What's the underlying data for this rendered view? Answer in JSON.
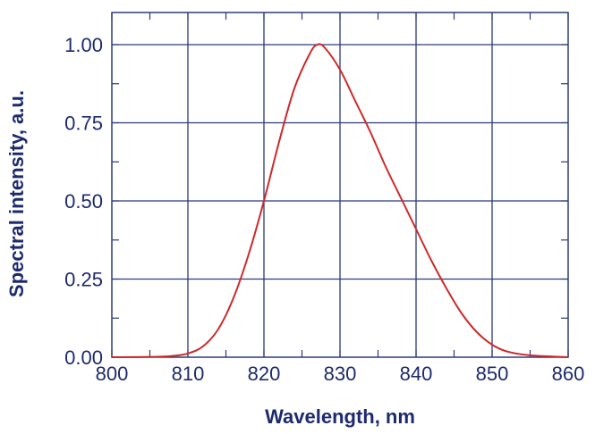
{
  "chart_data": {
    "type": "line",
    "title": "",
    "xlabel": "Wavelength, nm",
    "ylabel": "Spectral intensity, a.u.",
    "xlim": [
      800,
      860
    ],
    "ylim": [
      0,
      1.0
    ],
    "xticks": [
      800,
      810,
      820,
      830,
      840,
      850,
      860
    ],
    "xtick_labels": [
      "800",
      "810",
      "820",
      "830",
      "840",
      "850",
      "860"
    ],
    "yticks": [
      0,
      0.25,
      0.5,
      0.75,
      1.0
    ],
    "ytick_labels": [
      "0.00",
      "0.25",
      "0.50",
      "0.75",
      "1.00"
    ],
    "grid": true,
    "series": [
      {
        "color": "#cc2a2a",
        "x": [
          800,
          805,
          808,
          810,
          812,
          814,
          816,
          818,
          820,
          822,
          824,
          826,
          827,
          828,
          830,
          832,
          834,
          836,
          838,
          840,
          842,
          844,
          846,
          848,
          850,
          852,
          855,
          860
        ],
        "y": [
          0.0,
          0.001,
          0.004,
          0.012,
          0.035,
          0.09,
          0.19,
          0.33,
          0.5,
          0.69,
          0.86,
          0.97,
          1.0,
          0.99,
          0.92,
          0.82,
          0.72,
          0.61,
          0.51,
          0.41,
          0.31,
          0.22,
          0.14,
          0.08,
          0.04,
          0.018,
          0.006,
          0.0
        ]
      }
    ]
  },
  "colors": {
    "grid": "#2b3b7a",
    "axis_text": "#1e2a6e",
    "series": "#cc2a2a"
  }
}
